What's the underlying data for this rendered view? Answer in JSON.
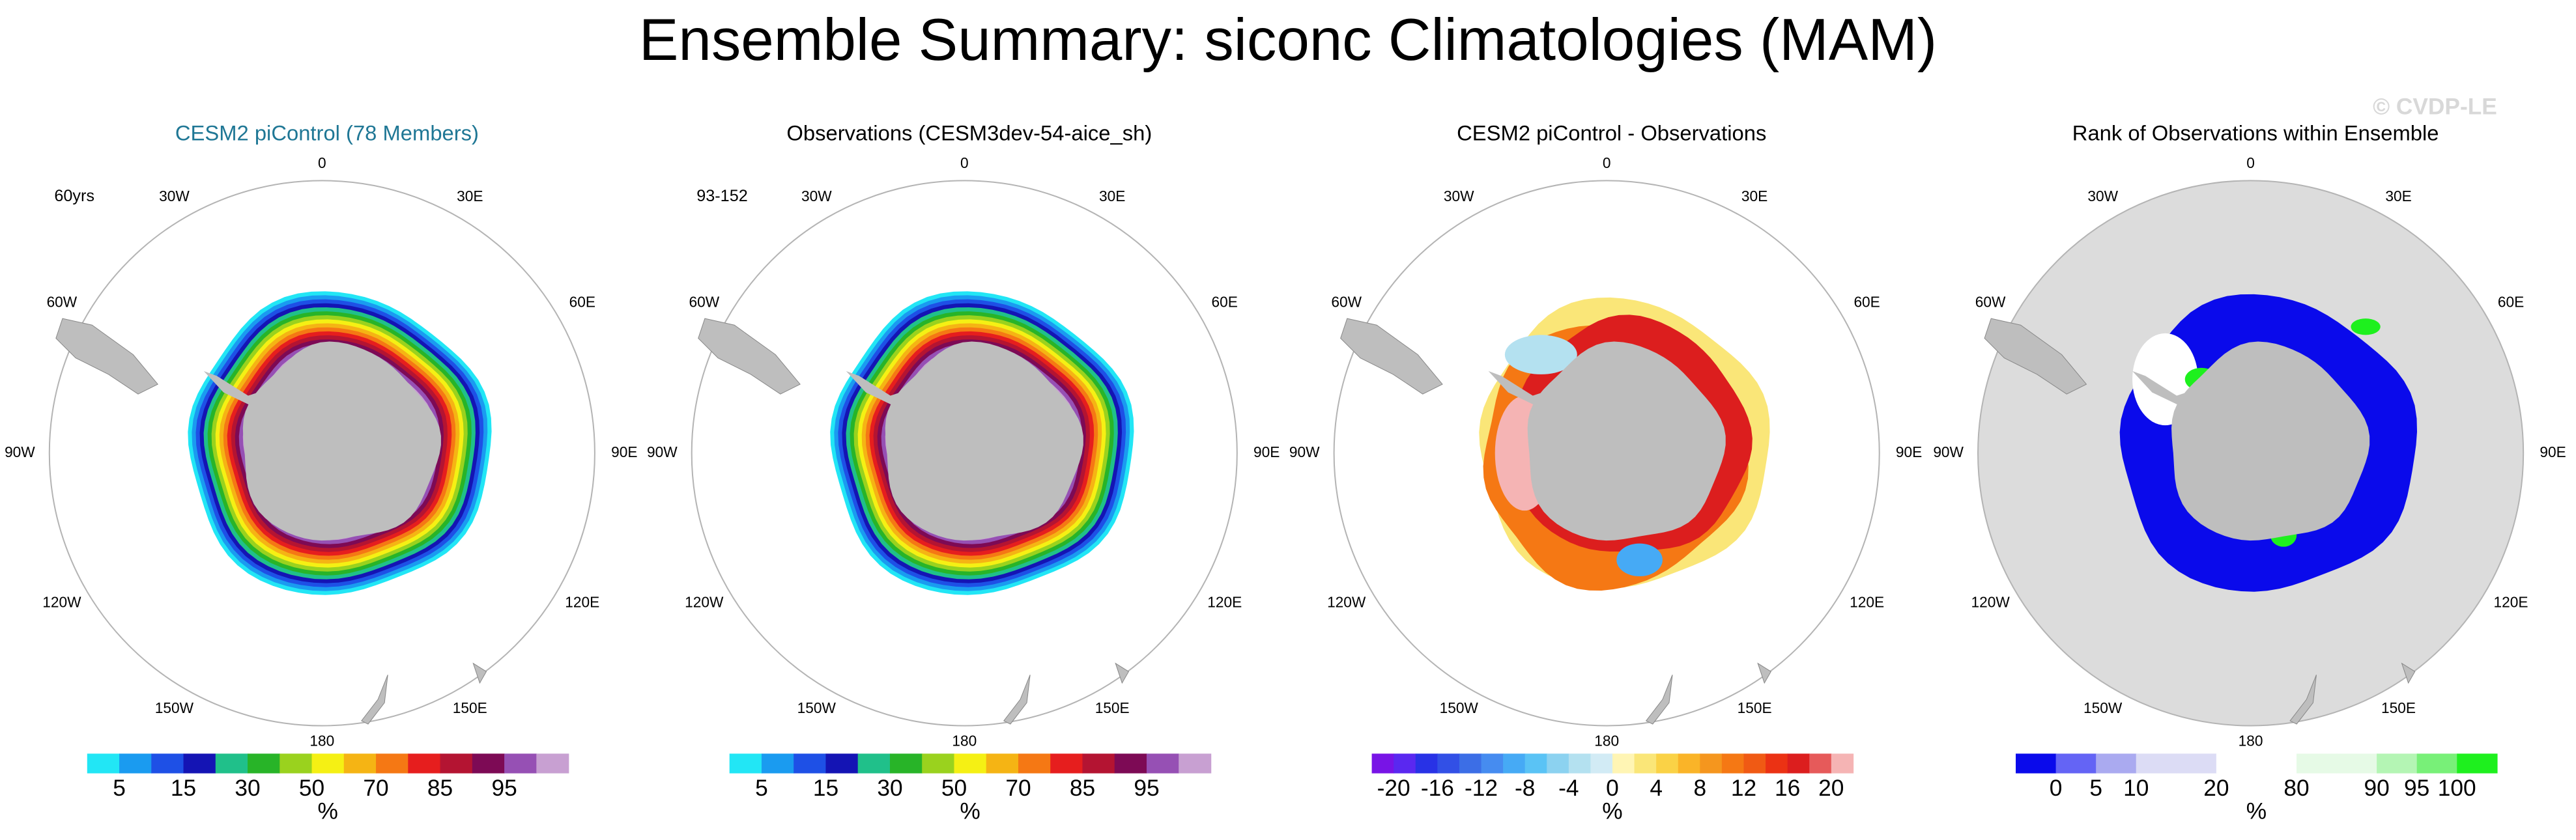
{
  "title": "Ensemble Summary: siconc Climatologies (MAM)",
  "watermark": "© CVDP-LE",
  "longitude_labels": [
    "0",
    "30E",
    "60E",
    "90E",
    "120E",
    "150E",
    "180",
    "150W",
    "120W",
    "90W",
    "60W",
    "30W"
  ],
  "panels": [
    {
      "title": "CESM2 piControl (78 Members)",
      "title_color": "#1f7795",
      "corner_label": "60yrs",
      "map_style": "concentration",
      "colorbar": {
        "unit": "%",
        "colors": [
          "#22e6f5",
          "#1a9bf0",
          "#1e50e6",
          "#1414b4",
          "#20c08a",
          "#28b428",
          "#9ad21e",
          "#f5f014",
          "#f5b414",
          "#f57814",
          "#e61e1e",
          "#b41432",
          "#7d0a55",
          "#9650b4",
          "#c8a0d2"
        ],
        "labels": [
          5,
          null,
          15,
          null,
          30,
          null,
          50,
          null,
          70,
          null,
          85,
          null,
          95,
          null
        ]
      }
    },
    {
      "title": "Observations (CESM3dev-54-aice_sh)",
      "title_color": "#000000",
      "corner_label": "93-152",
      "map_style": "concentration",
      "colorbar": {
        "unit": "%",
        "colors": [
          "#22e6f5",
          "#1a9bf0",
          "#1e50e6",
          "#1414b4",
          "#20c08a",
          "#28b428",
          "#9ad21e",
          "#f5f014",
          "#f5b414",
          "#f57814",
          "#e61e1e",
          "#b41432",
          "#7d0a55",
          "#9650b4",
          "#c8a0d2"
        ],
        "labels": [
          5,
          null,
          15,
          null,
          30,
          null,
          50,
          null,
          70,
          null,
          85,
          null,
          95,
          null
        ]
      }
    },
    {
      "title": "CESM2 piControl - Observations",
      "title_color": "#000000",
      "map_style": "difference",
      "colorbar": {
        "unit": "%",
        "colors": [
          "#7814e6",
          "#5a28f0",
          "#2832e6",
          "#3250e6",
          "#3c6ee6",
          "#468cf0",
          "#46aaf5",
          "#5ac3f5",
          "#8cd2f0",
          "#b4e1f0",
          "#d2ebf5",
          "#fff5b4",
          "#fae678",
          "#fad246",
          "#fab428",
          "#f5961e",
          "#f57814",
          "#f05a14",
          "#eb3214",
          "#dc1e1e",
          "#e65a5a",
          "#f5b4b4"
        ],
        "labels": [
          -20,
          null,
          -16,
          null,
          -12,
          null,
          -8,
          null,
          -4,
          null,
          0,
          null,
          4,
          null,
          8,
          null,
          12,
          null,
          16,
          null,
          20
        ]
      }
    },
    {
      "title": "Rank of Observations within Ensemble",
      "title_color": "#000000",
      "map_style": "rank",
      "colorbar": {
        "unit": "%",
        "colors": [
          "#0a0aeb",
          "#6464f5",
          "#aaaaf0",
          "#dcdcf5",
          "#dcdcf5",
          "#ffffff",
          "#ffffff",
          "#e6fae6",
          "#e6fae6",
          "#b4f5b4",
          "#78f078",
          "#1ef01e"
        ],
        "labels": [
          0,
          5,
          10,
          null,
          20,
          null,
          80,
          null,
          90,
          95,
          100
        ]
      }
    }
  ]
}
